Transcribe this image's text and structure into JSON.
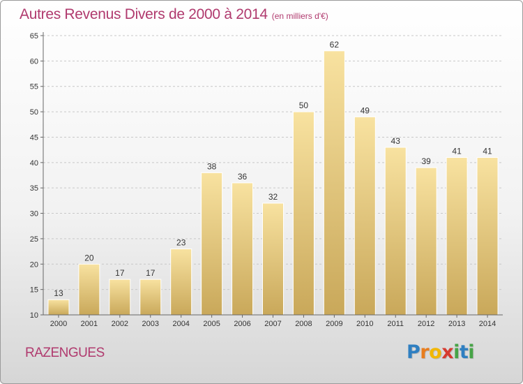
{
  "chart_data": {
    "type": "bar",
    "title": "Autres Revenus Divers de 2000 à 2014",
    "subtitle": "(en milliers d'€)",
    "categories": [
      "2000",
      "2001",
      "2002",
      "2003",
      "2004",
      "2005",
      "2006",
      "2007",
      "2008",
      "2009",
      "2010",
      "2011",
      "2012",
      "2013",
      "2014"
    ],
    "values": [
      13,
      20,
      17,
      17,
      23,
      38,
      36,
      32,
      50,
      62,
      49,
      43,
      39,
      41,
      41
    ],
    "ylim": [
      10,
      65
    ],
    "yticks": [
      10,
      15,
      20,
      25,
      30,
      35,
      40,
      45,
      50,
      55,
      60,
      65
    ],
    "grid": true,
    "data_labels": true,
    "bar_color_top": "#f8e2a0",
    "bar_color_bottom": "#c9a85a"
  },
  "footer": {
    "commune": "RAZENGUES",
    "brand": {
      "letters": [
        "P",
        "r",
        "o",
        "x",
        "i",
        "t",
        "i"
      ],
      "colors": [
        "#2f7fc1",
        "#e87d1e",
        "#f2b705",
        "#d63a2f",
        "#47a447",
        "#2f7fc1",
        "#47a447"
      ]
    }
  },
  "colors": {
    "accent": "#b03a6e"
  }
}
